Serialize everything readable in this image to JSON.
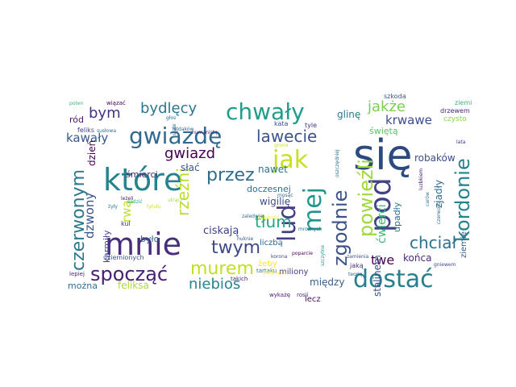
{
  "cloud": {
    "background": "#ffffff",
    "words": [
      {
        "text": "się",
        "color": "#2c4a7e"
      },
      {
        "text": "mnie",
        "color": "#472d7b"
      },
      {
        "text": "które",
        "color": "#26828e"
      },
      {
        "text": "dostać",
        "color": "#277f8e"
      },
      {
        "text": "gwiazdę",
        "color": "#31688e"
      },
      {
        "text": "chwały",
        "color": "#1f9e89"
      },
      {
        "text": "jak",
        "color": "#c8e020"
      },
      {
        "text": "lud",
        "color": "#433e85"
      },
      {
        "text": "mej",
        "color": "#1f968b"
      },
      {
        "text": "pod",
        "color": "#414487"
      },
      {
        "text": "kordonie",
        "color": "#26828e"
      },
      {
        "text": "zgodnie",
        "color": "#3b528b"
      },
      {
        "text": "powieźli",
        "color": "#a0da39"
      },
      {
        "text": "czerwonym",
        "color": "#2a788e"
      },
      {
        "text": "spocząć",
        "color": "#482173"
      },
      {
        "text": "murem",
        "color": "#c2df23"
      },
      {
        "text": "przez",
        "color": "#2f6c8e"
      },
      {
        "text": "twym",
        "color": "#3e4989"
      },
      {
        "text": "niebios",
        "color": "#25848e"
      },
      {
        "text": "tłum",
        "color": "#22a884"
      },
      {
        "text": "lawecie",
        "color": "#3a548c"
      },
      {
        "text": "bydlęcy",
        "color": "#2a778e"
      },
      {
        "text": "jakże",
        "color": "#7ad151"
      },
      {
        "text": "bym",
        "color": "#46337e"
      },
      {
        "text": "gwiazd",
        "color": "#440154"
      },
      {
        "text": "rzeźni",
        "color": "#b8de29"
      },
      {
        "text": "chciał",
        "color": "#2d718e"
      },
      {
        "text": "kawały",
        "color": "#38588c"
      },
      {
        "text": "dzwony",
        "color": "#39558c"
      },
      {
        "text": "rwą",
        "color": "#bddf26"
      },
      {
        "text": "krwawe",
        "color": "#3d4d8a"
      },
      {
        "text": "twe",
        "color": "#440154"
      },
      {
        "text": "robaków",
        "color": "#3d4d8a"
      },
      {
        "text": "zjadły",
        "color": "#31688e"
      },
      {
        "text": "ziemię",
        "color": "#355f8d"
      },
      {
        "text": "świętą",
        "color": "#55c667"
      },
      {
        "text": "glinę",
        "color": "#2a788e"
      },
      {
        "text": "czysto",
        "color": "#86d549"
      },
      {
        "text": "ciskają",
        "color": "#404387"
      },
      {
        "text": "wigilię",
        "color": "#3e4c8a"
      },
      {
        "text": "doczesnej",
        "color": "#2d718e"
      },
      {
        "text": "nawet",
        "color": "#2c728e"
      },
      {
        "text": "słać",
        "color": "#3a548c"
      },
      {
        "text": "dzień",
        "color": "#440154"
      },
      {
        "text": "śmierci",
        "color": "#482878"
      },
      {
        "text": "ćwierci",
        "color": "#38b977"
      },
      {
        "text": "upadły",
        "color": "#2d708e"
      },
      {
        "text": "stalinem",
        "color": "#3a538b"
      },
      {
        "text": "końca",
        "color": "#472c7a"
      },
      {
        "text": "między",
        "color": "#355f8d"
      },
      {
        "text": "miliony",
        "color": "#443a83"
      },
      {
        "text": "liczbą",
        "color": "#30698e"
      },
      {
        "text": "lecz",
        "color": "#471164"
      },
      {
        "text": "żeby",
        "color": "#fde725"
      },
      {
        "text": "feliksa",
        "color": "#addc30"
      },
      {
        "text": "można",
        "color": "#2e6f8e"
      },
      {
        "text": "karmiły",
        "color": "#414487"
      },
      {
        "text": "kul",
        "color": "#46307e"
      },
      {
        "text": "było",
        "color": "#31688e"
      },
      {
        "text": "ród",
        "color": "#481467"
      },
      {
        "text": "feliks",
        "color": "#404387"
      },
      {
        "text": "ziemi",
        "color": "#35b779"
      },
      {
        "text": "drzewem",
        "color": "#482475"
      },
      {
        "text": "szkoda",
        "color": "#3b528b"
      },
      {
        "text": "tyle",
        "color": "#46327e"
      },
      {
        "text": "kata",
        "color": "#3d4e8a"
      },
      {
        "text": "grono",
        "color": "#c8e020"
      },
      {
        "text": "oszczędniej",
        "color": "#2c728e"
      },
      {
        "text": "zazdrość",
        "color": "#fde725"
      },
      {
        "text": "mosąc",
        "color": "#2e6e8e"
      },
      {
        "text": "zaledwie",
        "color": "#31678e"
      },
      {
        "text": "tytułu",
        "color": "#d0e11c"
      },
      {
        "text": "utrąci",
        "color": "#a5db36"
      },
      {
        "text": "leżeli",
        "color": "#48186a"
      },
      {
        "text": "sadzić",
        "color": "#25ab82"
      },
      {
        "text": "poparcie",
        "color": "#440154"
      },
      {
        "text": "zamienia",
        "color": "#3b528b"
      },
      {
        "text": "szczytne",
        "color": "#1fa088"
      },
      {
        "text": "teorią",
        "color": "#31688e"
      },
      {
        "text": "jaką",
        "color": "#472c7a"
      },
      {
        "text": "gniewem",
        "color": "#3e4989"
      },
      {
        "text": "czerwoną",
        "color": "#2e6e8e"
      },
      {
        "text": "carów",
        "color": "#2c738e"
      },
      {
        "text": "luzbkiem",
        "color": "#482576"
      },
      {
        "text": "lata",
        "color": "#46307e"
      },
      {
        "text": "wiązać",
        "color": "#440154"
      },
      {
        "text": "poten",
        "color": "#35b779"
      },
      {
        "text": "łajdaków",
        "color": "#31688e"
      },
      {
        "text": "głos",
        "color": "#2c728e"
      },
      {
        "text": "humanistą",
        "color": "#472a7a"
      },
      {
        "text": "susłowa",
        "color": "#2d708e"
      },
      {
        "text": "staje",
        "color": "#32648e"
      },
      {
        "text": "uziemionych",
        "color": "#3b528b"
      },
      {
        "text": "lepiej",
        "color": "#482878"
      },
      {
        "text": "tartaku",
        "color": "#2a788e"
      },
      {
        "text": "takich",
        "color": "#482475"
      },
      {
        "text": "huknie",
        "color": "#39568c"
      },
      {
        "text": "korona",
        "color": "#3e4989"
      },
      {
        "text": "wykażę",
        "color": "#482071"
      },
      {
        "text": "rosji",
        "color": "#46307e"
      },
      {
        "text": "żyły",
        "color": "#2a788e"
      },
      {
        "text": "zdobnych",
        "color": "#fde725"
      },
      {
        "text": "mroźnych",
        "color": "#2c738e"
      }
    ]
  }
}
